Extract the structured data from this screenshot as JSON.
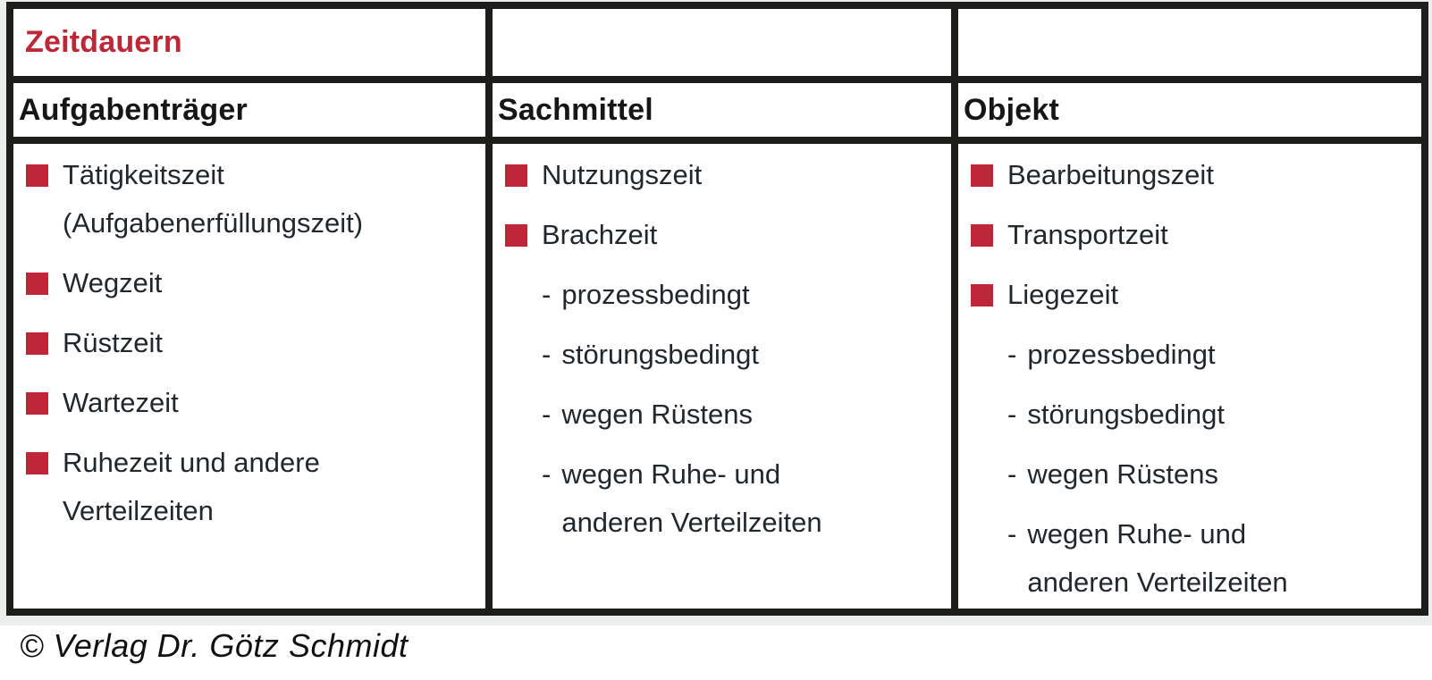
{
  "table": {
    "title": "Zeitdauern",
    "columns": [
      {
        "header": "Aufgabenträger",
        "items": [
          {
            "level": 1,
            "text": "Tätigkeitszeit\n(Aufgabenerfüllungszeit)"
          },
          {
            "level": 1,
            "text": "Wegzeit"
          },
          {
            "level": 1,
            "text": "Rüstzeit"
          },
          {
            "level": 1,
            "text": "Wartezeit"
          },
          {
            "level": 1,
            "text": "Ruhezeit und andere\nVerteilzeiten"
          }
        ]
      },
      {
        "header": "Sachmittel",
        "items": [
          {
            "level": 1,
            "text": "Nutzungszeit"
          },
          {
            "level": 1,
            "text": "Brachzeit"
          },
          {
            "level": 2,
            "text": "prozessbedingt"
          },
          {
            "level": 2,
            "text": "störungsbedingt"
          },
          {
            "level": 2,
            "text": "wegen Rüstens"
          },
          {
            "level": 2,
            "text": "wegen Ruhe- und\nanderen Verteilzeiten"
          }
        ]
      },
      {
        "header": "Objekt",
        "items": [
          {
            "level": 1,
            "text": "Bearbeitungszeit"
          },
          {
            "level": 1,
            "text": "Transportzeit"
          },
          {
            "level": 1,
            "text": "Liegezeit"
          },
          {
            "level": 2,
            "text": "prozessbedingt"
          },
          {
            "level": 2,
            "text": "störungsbedingt"
          },
          {
            "level": 2,
            "text": "wegen Rüstens"
          },
          {
            "level": 2,
            "text": "wegen Ruhe- und\nanderen Verteilzeiten"
          }
        ]
      }
    ]
  },
  "list": {
    "sub_prefix": "-"
  },
  "footer": {
    "copyright": "© Verlag Dr. Götz Schmidt"
  },
  "colors": {
    "accent_red": "#bd2737",
    "border_color": "#1d1d1b",
    "panel_bg": "#ebeeec",
    "cell_bg": "#ffffff",
    "body_text": "#22272c",
    "heading_text": "#161616"
  }
}
